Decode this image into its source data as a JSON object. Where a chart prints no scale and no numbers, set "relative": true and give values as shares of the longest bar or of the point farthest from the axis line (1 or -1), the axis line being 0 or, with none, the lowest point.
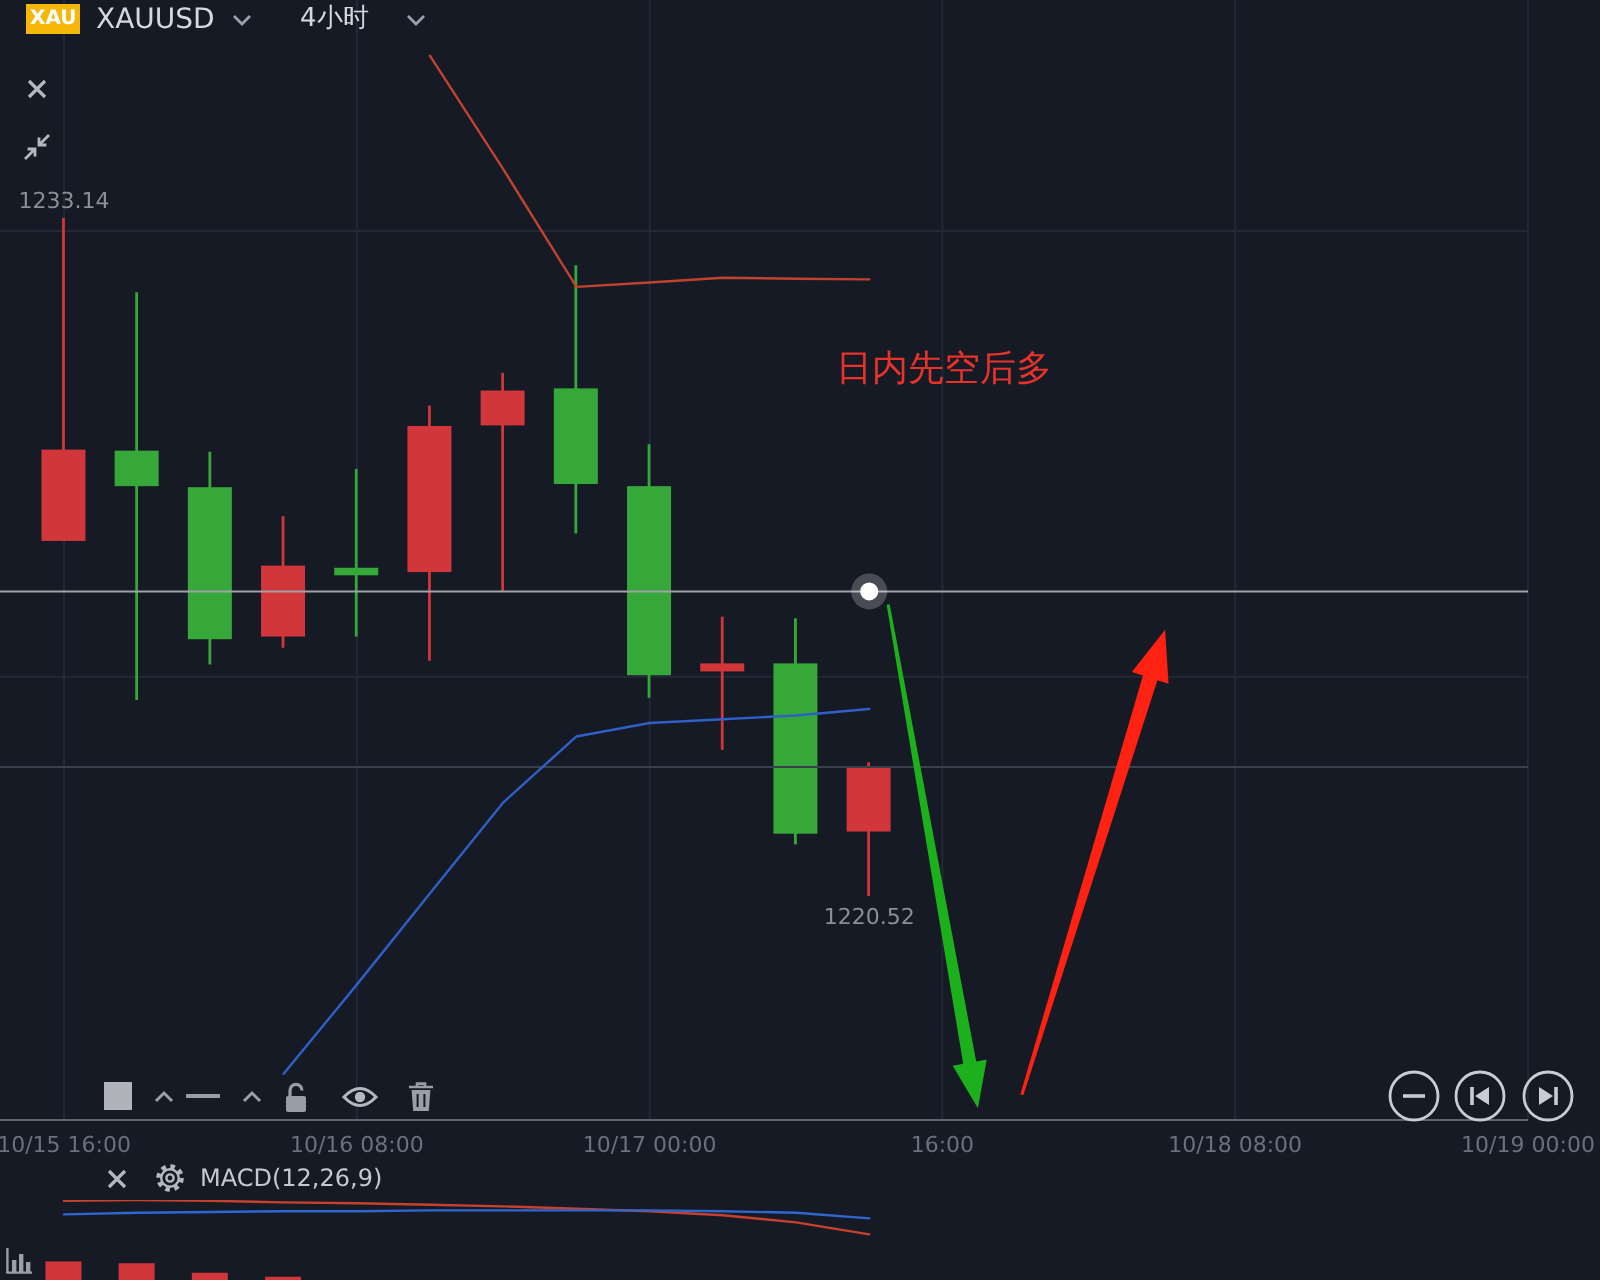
{
  "chart_data": [
    {
      "type": "candlestick",
      "title": "XAUUSD",
      "subtitle": "4小时",
      "x": [
        "--10-15T16:00",
        "--10-15T20:00",
        "--10-16T00:00",
        "--10-16T04:00",
        "--10-16T08:00",
        "--10-16T12:00",
        "--10-16T16:00",
        "--10-16T20:00",
        "--10-17T00:00",
        "--10-17T04:00",
        "--10-17T08:00",
        "--10-17T12:00"
      ],
      "xlim": [
        "--10-15T12:30",
        "--10-19T00:00"
      ],
      "xticks": [
        {
          "value": "--10-15T16:00",
          "label": "10/15 16:00"
        },
        {
          "value": "--10-16T08:00",
          "label": "10/16 08:00"
        },
        {
          "value": "--10-17T00:00",
          "label": "10/17 00:00"
        },
        {
          "value": "--10-17T16:00",
          "label": "16:00"
        },
        {
          "value": "--10-18T08:00",
          "label": "10/18 08:00"
        },
        {
          "value": "--10-19T00:00",
          "label": "10/19 00:00"
        }
      ],
      "ylim": [
        1216.35,
        1237.2
      ],
      "yticks": [
        {
          "value": 1232.9,
          "label": null
        },
        {
          "value": 1224.6,
          "label": null
        }
      ],
      "ohlc": [
        [
          1227.13,
          1233.14,
          1227.13,
          1228.83
        ],
        [
          1228.81,
          1231.76,
          1224.17,
          1228.15
        ],
        [
          1228.13,
          1228.79,
          1224.83,
          1225.3
        ],
        [
          1225.35,
          1227.59,
          1225.14,
          1226.67
        ],
        [
          1226.63,
          1228.47,
          1225.35,
          1226.49
        ],
        [
          1226.55,
          1229.65,
          1224.9,
          1229.27
        ],
        [
          1229.28,
          1230.26,
          1226.2,
          1229.93
        ],
        [
          1229.97,
          1232.26,
          1227.27,
          1228.19
        ],
        [
          1228.15,
          1228.93,
          1224.21,
          1224.63
        ],
        [
          1224.7,
          1225.72,
          1223.24,
          1224.85
        ],
        [
          1224.85,
          1225.69,
          1221.48,
          1221.68
        ],
        [
          1221.72,
          1223.01,
          1220.52,
          1222.92
        ]
      ],
      "colors": [
        "#d1363a",
        "#36a83a",
        "#36a83a",
        "#d1363a",
        "#36a83a",
        "#d1363a",
        "#d1363a",
        "#36a83a",
        "#36a83a",
        "#d1363a",
        "#36a83a",
        "#d1363a"
      ],
      "series": [
        {
          "type": "line",
          "color": "#c0432e",
          "values": [
            null,
            null,
            null,
            null,
            null,
            1236.16,
            1234.05,
            1231.86,
            1231.94,
            1232.03,
            1232.01,
            1232.0
          ]
        },
        {
          "type": "line",
          "color": "#2f5fc7",
          "values": [
            null,
            null,
            null,
            1217.21,
            1218.87,
            1220.57,
            1222.26,
            1223.49,
            1223.74,
            1223.81,
            1223.88,
            1224.0
          ]
        }
      ],
      "ref_lines": [
        {
          "axis": "y",
          "value": 1226.19,
          "color": "#a0a2a8"
        },
        {
          "axis": "y",
          "value": 1222.92,
          "color": "#3a3f4d"
        }
      ],
      "annotations": [
        "XAU",
        "日内先空后多",
        {
          "text": "1233.14",
          "x": "--10-15T16:00",
          "y": 1233.14
        },
        {
          "text": "1220.52",
          "x": "--10-17T12:00",
          "y": 1220.52
        }
      ],
      "grid": true,
      "tick_labels": "x"
    },
    {
      "type": "line",
      "title": "MACD(12,26,9)",
      "x": [
        "--10-15T16:00",
        "--10-15T20:00",
        "--10-16T00:00",
        "--10-16T04:00",
        "--10-16T08:00",
        "--10-16T12:00",
        "--10-16T16:00",
        "--10-16T20:00",
        "--10-17T00:00",
        "--10-17T04:00",
        "--10-17T08:00",
        "--10-17T12:00"
      ],
      "xlim": [
        "--10-15T12:30",
        "--10-19T00:00"
      ],
      "xticks": [
        {
          "value": "--10-15T16:00",
          "label": null
        },
        {
          "value": "--10-16T08:00",
          "label": null
        },
        {
          "value": "--10-17T00:00",
          "label": null
        },
        {
          "value": "--10-17T16:00",
          "label": null
        },
        {
          "value": "--10-18T08:00",
          "label": null
        },
        {
          "value": "--10-19T00:00",
          "label": null
        }
      ],
      "relative": true,
      "tick_labels": false,
      "grid": "x",
      "series": [
        {
          "type": "bar",
          "color": "#d1363a",
          "values": [
            0.23,
            0.21,
            0.09,
            0.04,
            null,
            null,
            null,
            null,
            null,
            null,
            null,
            null
          ]
        },
        {
          "color": "#c9402c",
          "values": [
            0.99,
            1,
            0.99,
            0.97,
            0.96,
            0.94,
            0.92,
            0.89,
            0.86,
            0.81,
            0.72,
            0.57
          ]
        },
        {
          "color": "#2f66d0",
          "values": [
            0.82,
            0.84,
            0.85,
            0.86,
            0.86,
            0.87,
            0.87,
            0.87,
            0.87,
            0.86,
            0.84,
            0.77
          ]
        }
      ]
    }
  ]
}
